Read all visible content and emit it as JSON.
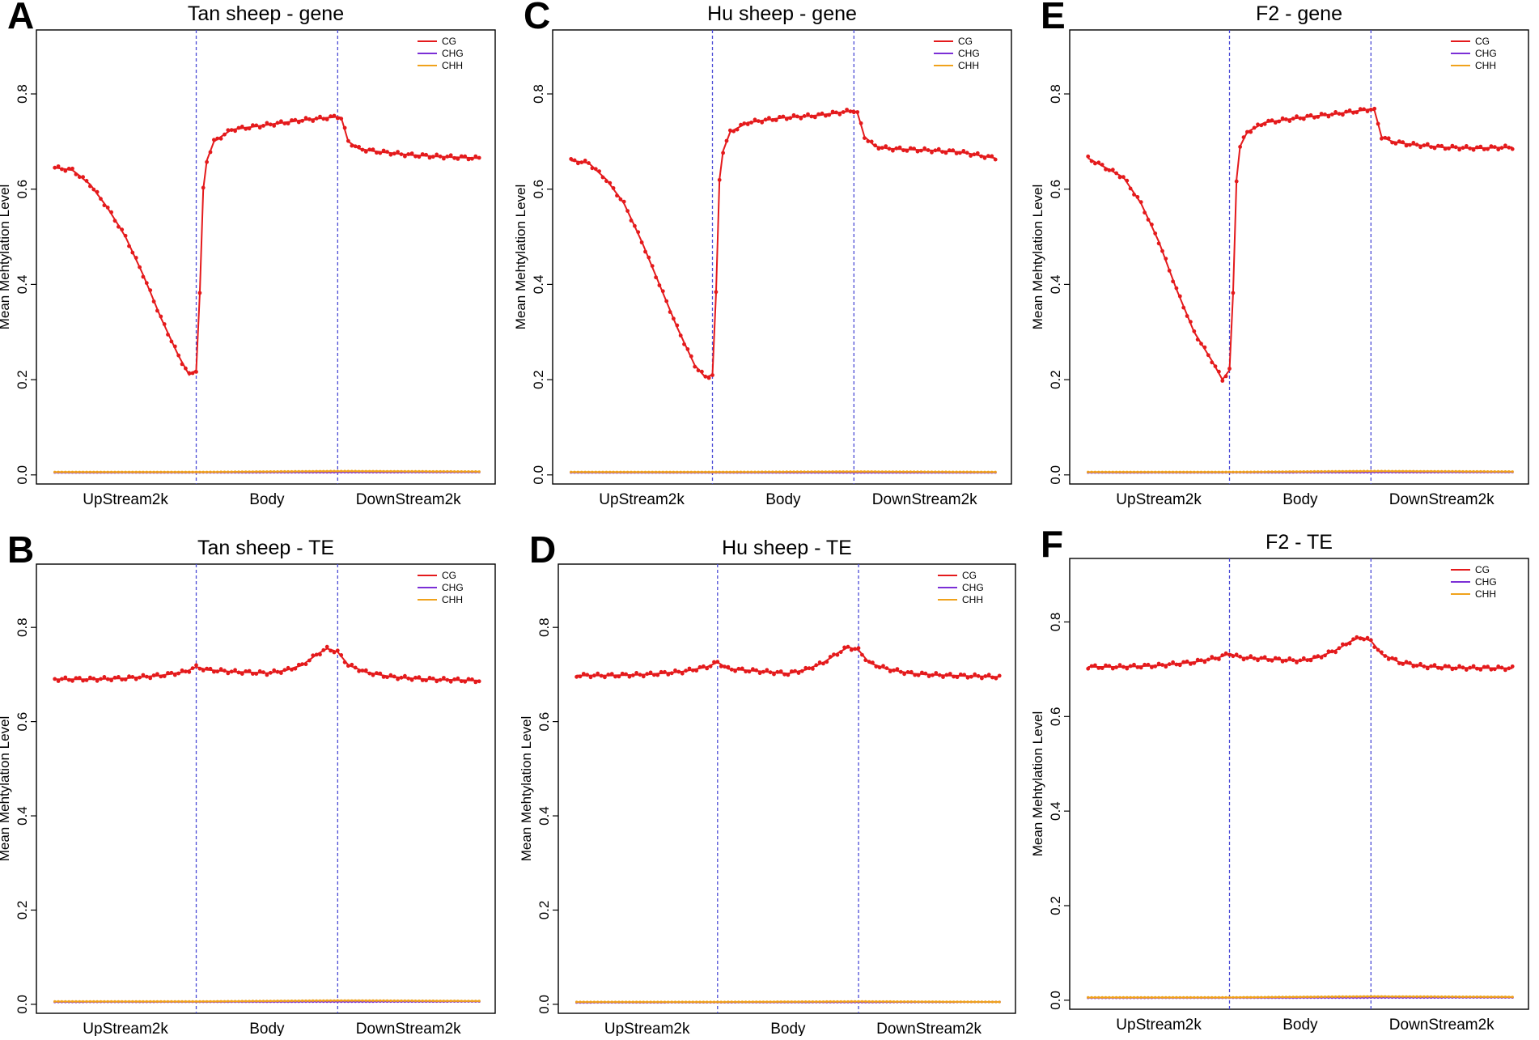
{
  "figure": {
    "colors": {
      "CG": "#e41a1c",
      "CHG": "#7b2fd6",
      "CHH": "#f0a21b",
      "divider": "#4b4bd6",
      "axis": "#000000"
    },
    "legend_labels": [
      "CG",
      "CHG",
      "CHH"
    ],
    "y_label": "Mean Mehtylation Level",
    "y_ticks": [
      "0.0",
      "0.2",
      "0.4",
      "0.6",
      "0.8"
    ],
    "region_labels": [
      "UpStream2k",
      "Body",
      "DownStream2k"
    ]
  },
  "chart_data": [
    {
      "letter": "A",
      "title": "Tan sheep - gene",
      "type": "line",
      "xlabel": "",
      "ylabel": "Mean Mehtylation Level",
      "ylim": [
        0,
        0.92
      ],
      "x_categories": [
        "UpStream2k",
        "Body",
        "DownStream2k"
      ],
      "series": [
        {
          "name": "CG",
          "points": [
            [
              0,
              0.645
            ],
            [
              5,
              0.64
            ],
            [
              10,
              0.61
            ],
            [
              15,
              0.56
            ],
            [
              20,
              0.5
            ],
            [
              25,
              0.42
            ],
            [
              30,
              0.33
            ],
            [
              35,
              0.25
            ],
            [
              38,
              0.21
            ],
            [
              40,
              0.22
            ],
            [
              41,
              0.38
            ],
            [
              42,
              0.6
            ],
            [
              43,
              0.66
            ],
            [
              45,
              0.7
            ],
            [
              50,
              0.725
            ],
            [
              60,
              0.735
            ],
            [
              70,
              0.745
            ],
            [
              80,
              0.752
            ],
            [
              81,
              0.75
            ],
            [
              83,
              0.7
            ],
            [
              86,
              0.685
            ],
            [
              90,
              0.68
            ],
            [
              100,
              0.672
            ],
            [
              110,
              0.668
            ],
            [
              120,
              0.665
            ]
          ]
        },
        {
          "name": "CHG",
          "points": [
            [
              0,
              0.005
            ],
            [
              120,
              0.006
            ]
          ]
        },
        {
          "name": "CHH",
          "points": [
            [
              0,
              0.006
            ],
            [
              40,
              0.006
            ],
            [
              80,
              0.008
            ],
            [
              120,
              0.007
            ]
          ]
        }
      ]
    },
    {
      "letter": "C",
      "title": "Hu sheep - gene",
      "type": "line",
      "xlabel": "",
      "ylabel": "Mean Mehtylation Level",
      "ylim": [
        0,
        0.92
      ],
      "x_categories": [
        "UpStream2k",
        "Body",
        "DownStream2k"
      ],
      "series": [
        {
          "name": "CG",
          "points": [
            [
              0,
              0.66
            ],
            [
              5,
              0.655
            ],
            [
              10,
              0.62
            ],
            [
              15,
              0.57
            ],
            [
              20,
              0.49
            ],
            [
              25,
              0.4
            ],
            [
              30,
              0.31
            ],
            [
              35,
              0.23
            ],
            [
              38,
              0.205
            ],
            [
              40,
              0.21
            ],
            [
              41,
              0.38
            ],
            [
              42,
              0.62
            ],
            [
              43,
              0.68
            ],
            [
              45,
              0.72
            ],
            [
              50,
              0.74
            ],
            [
              60,
              0.75
            ],
            [
              70,
              0.755
            ],
            [
              80,
              0.765
            ],
            [
              81,
              0.76
            ],
            [
              83,
              0.71
            ],
            [
              86,
              0.69
            ],
            [
              90,
              0.685
            ],
            [
              100,
              0.682
            ],
            [
              110,
              0.678
            ],
            [
              120,
              0.665
            ]
          ]
        },
        {
          "name": "CHG",
          "points": [
            [
              0,
              0.005
            ],
            [
              120,
              0.005
            ]
          ]
        },
        {
          "name": "CHH",
          "points": [
            [
              0,
              0.006
            ],
            [
              40,
              0.006
            ],
            [
              80,
              0.007
            ],
            [
              120,
              0.006
            ]
          ]
        }
      ]
    },
    {
      "letter": "E",
      "title": "F2 - gene",
      "type": "line",
      "xlabel": "",
      "ylabel": "Mean Mehtylation Level",
      "ylim": [
        0,
        0.92
      ],
      "x_categories": [
        "UpStream2k",
        "Body",
        "DownStream2k"
      ],
      "series": [
        {
          "name": "CG",
          "points": [
            [
              0,
              0.665
            ],
            [
              5,
              0.645
            ],
            [
              10,
              0.625
            ],
            [
              15,
              0.57
            ],
            [
              20,
              0.49
            ],
            [
              25,
              0.39
            ],
            [
              30,
              0.3
            ],
            [
              35,
              0.24
            ],
            [
              38,
              0.2
            ],
            [
              40,
              0.22
            ],
            [
              41,
              0.38
            ],
            [
              42,
              0.62
            ],
            [
              43,
              0.69
            ],
            [
              45,
              0.72
            ],
            [
              50,
              0.74
            ],
            [
              60,
              0.75
            ],
            [
              70,
              0.758
            ],
            [
              80,
              0.768
            ],
            [
              81,
              0.765
            ],
            [
              83,
              0.71
            ],
            [
              86,
              0.7
            ],
            [
              90,
              0.695
            ],
            [
              100,
              0.688
            ],
            [
              110,
              0.686
            ],
            [
              120,
              0.688
            ]
          ]
        },
        {
          "name": "CHG",
          "points": [
            [
              0,
              0.005
            ],
            [
              120,
              0.006
            ]
          ]
        },
        {
          "name": "CHH",
          "points": [
            [
              0,
              0.006
            ],
            [
              40,
              0.006
            ],
            [
              80,
              0.008
            ],
            [
              120,
              0.007
            ]
          ]
        }
      ]
    },
    {
      "letter": "B",
      "title": "Tan sheep - TE",
      "type": "line",
      "xlabel": "",
      "ylabel": "Mean Mehtylation Level",
      "ylim": [
        0,
        0.92
      ],
      "x_categories": [
        "UpStream2k",
        "Body",
        "DownStream2k"
      ],
      "series": [
        {
          "name": "CG",
          "points": [
            [
              0,
              0.69
            ],
            [
              10,
              0.69
            ],
            [
              20,
              0.692
            ],
            [
              30,
              0.698
            ],
            [
              37,
              0.706
            ],
            [
              40,
              0.716
            ],
            [
              43,
              0.71
            ],
            [
              50,
              0.706
            ],
            [
              60,
              0.703
            ],
            [
              65,
              0.708
            ],
            [
              70,
              0.72
            ],
            [
              74,
              0.742
            ],
            [
              77,
              0.755
            ],
            [
              80,
              0.748
            ],
            [
              83,
              0.72
            ],
            [
              88,
              0.705
            ],
            [
              95,
              0.695
            ],
            [
              105,
              0.69
            ],
            [
              120,
              0.687
            ]
          ]
        },
        {
          "name": "CHG",
          "points": [
            [
              0,
              0.005
            ],
            [
              120,
              0.006
            ]
          ]
        },
        {
          "name": "CHH",
          "points": [
            [
              0,
              0.006
            ],
            [
              40,
              0.006
            ],
            [
              80,
              0.008
            ],
            [
              120,
              0.007
            ]
          ]
        }
      ]
    },
    {
      "letter": "D",
      "title": "Hu sheep - TE",
      "type": "line",
      "xlabel": "",
      "ylabel": "Mean Mehtylation Level",
      "ylim": [
        0,
        0.92
      ],
      "x_categories": [
        "UpStream2k",
        "Body",
        "DownStream2k"
      ],
      "series": [
        {
          "name": "CG",
          "points": [
            [
              0,
              0.698
            ],
            [
              10,
              0.698
            ],
            [
              20,
              0.7
            ],
            [
              30,
              0.706
            ],
            [
              37,
              0.716
            ],
            [
              40,
              0.726
            ],
            [
              43,
              0.712
            ],
            [
              50,
              0.708
            ],
            [
              60,
              0.702
            ],
            [
              65,
              0.71
            ],
            [
              70,
              0.725
            ],
            [
              74,
              0.745
            ],
            [
              77,
              0.758
            ],
            [
              80,
              0.752
            ],
            [
              83,
              0.725
            ],
            [
              88,
              0.712
            ],
            [
              95,
              0.702
            ],
            [
              105,
              0.698
            ],
            [
              120,
              0.695
            ]
          ]
        },
        {
          "name": "CHG",
          "points": [
            [
              0,
              0.004
            ],
            [
              120,
              0.005
            ]
          ]
        },
        {
          "name": "CHH",
          "points": [
            [
              0,
              0.005
            ],
            [
              40,
              0.005
            ],
            [
              80,
              0.006
            ],
            [
              120,
              0.005
            ]
          ]
        }
      ]
    },
    {
      "letter": "F",
      "title": "F2 - TE",
      "type": "line",
      "xlabel": "",
      "ylabel": "Mean Mehtylation Level",
      "ylim": [
        0,
        0.92
      ],
      "x_categories": [
        "UpStream2k",
        "Body",
        "DownStream2k"
      ],
      "series": [
        {
          "name": "CG",
          "points": [
            [
              0,
              0.705
            ],
            [
              10,
              0.705
            ],
            [
              20,
              0.708
            ],
            [
              30,
              0.715
            ],
            [
              37,
              0.725
            ],
            [
              40,
              0.733
            ],
            [
              43,
              0.725
            ],
            [
              50,
              0.722
            ],
            [
              60,
              0.718
            ],
            [
              65,
              0.725
            ],
            [
              70,
              0.74
            ],
            [
              74,
              0.758
            ],
            [
              77,
              0.768
            ],
            [
              80,
              0.76
            ],
            [
              83,
              0.732
            ],
            [
              88,
              0.715
            ],
            [
              95,
              0.706
            ],
            [
              105,
              0.703
            ],
            [
              120,
              0.702
            ]
          ]
        },
        {
          "name": "CHG",
          "points": [
            [
              0,
              0.005
            ],
            [
              120,
              0.006
            ]
          ]
        },
        {
          "name": "CHH",
          "points": [
            [
              0,
              0.006
            ],
            [
              40,
              0.006
            ],
            [
              80,
              0.008
            ],
            [
              120,
              0.007
            ]
          ]
        }
      ]
    }
  ]
}
